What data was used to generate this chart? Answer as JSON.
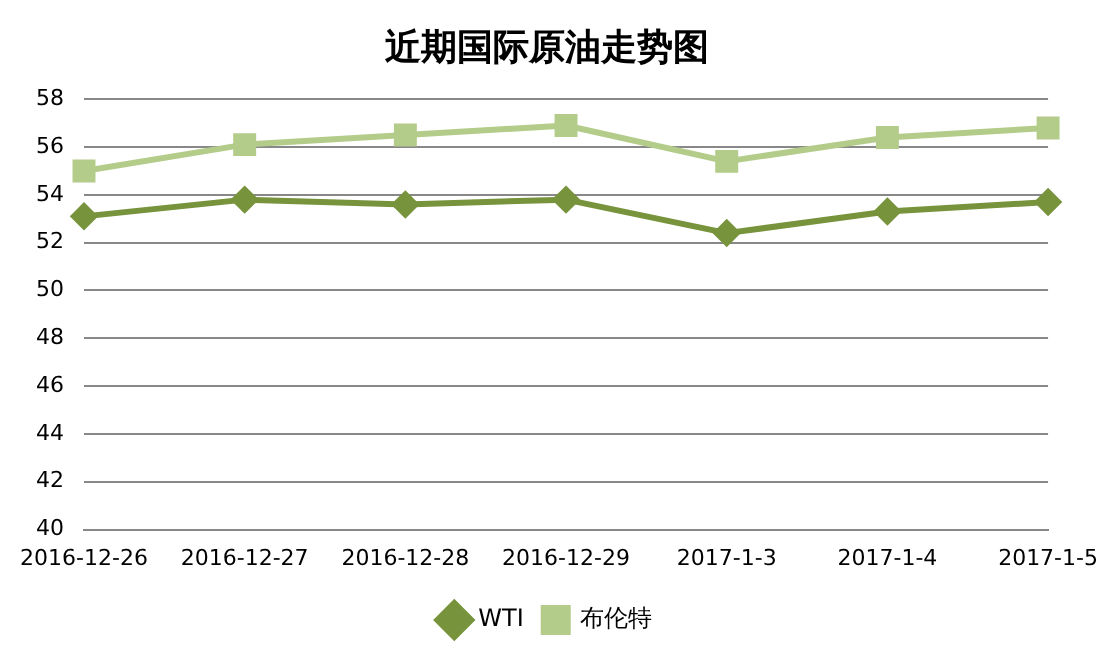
{
  "chart_data": {
    "type": "line",
    "title": "近期国际原油走势图",
    "categories": [
      "2016-12-26",
      "2016-12-27",
      "2016-12-28",
      "2016-12-29",
      "2017-1-3",
      "2017-1-4",
      "2017-1-5"
    ],
    "series": [
      {
        "name": "WTI",
        "color": "#77933c",
        "marker": "diamond",
        "values": [
          53.1,
          53.8,
          53.6,
          53.8,
          52.4,
          53.3,
          53.7
        ]
      },
      {
        "name": "布伦特",
        "color": "#b3cc8a",
        "marker": "square",
        "values": [
          55.0,
          56.1,
          56.5,
          56.9,
          55.4,
          56.4,
          56.8
        ]
      }
    ],
    "ylim": [
      40,
      58
    ],
    "yticks": [
      40,
      42,
      44,
      46,
      48,
      50,
      52,
      54,
      56,
      58
    ],
    "grid": "y",
    "legend": "bottom"
  }
}
